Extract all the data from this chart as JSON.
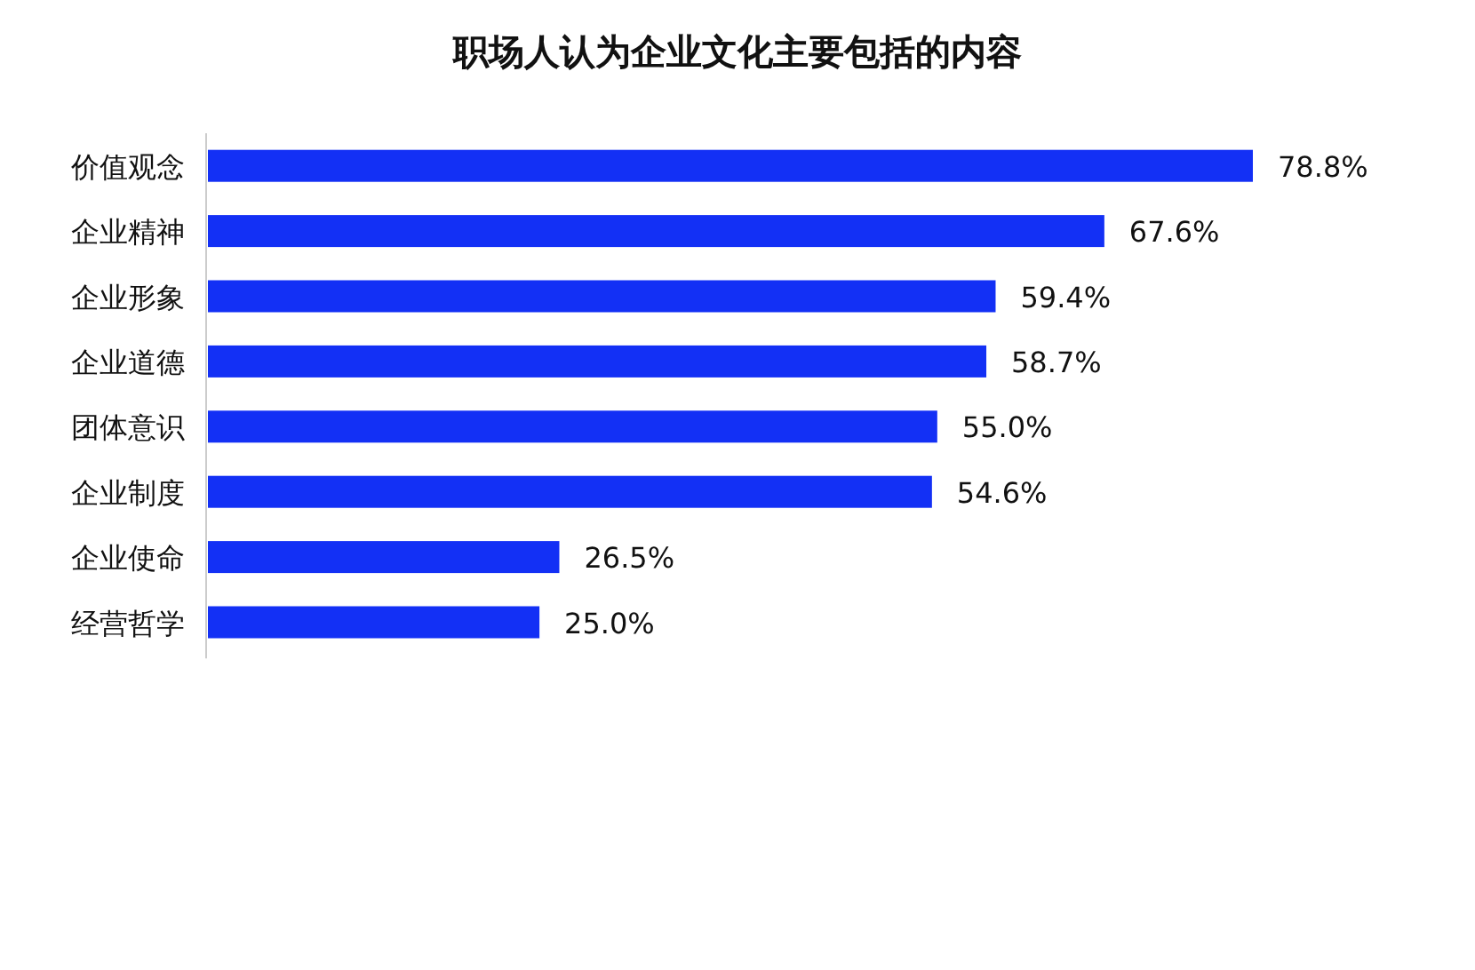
{
  "chart_data": {
    "type": "bar",
    "orientation": "horizontal",
    "title": "职场人认为企业文化主要包括的内容",
    "categories": [
      "价值观念",
      "企业精神",
      "企业形象",
      "企业道德",
      "团体意识",
      "企业制度",
      "企业使命",
      "经营哲学"
    ],
    "values": [
      78.8,
      67.6,
      59.4,
      58.7,
      55.0,
      54.6,
      26.5,
      25.0
    ],
    "value_labels": [
      "78.8%",
      "67.6%",
      "59.4%",
      "58.7%",
      "55.0%",
      "54.6%",
      "26.5%",
      "25.0%"
    ],
    "color": "#1330f5"
  }
}
